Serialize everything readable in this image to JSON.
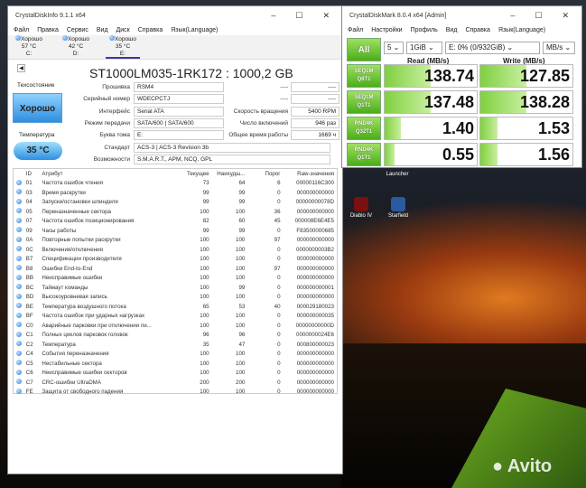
{
  "desktop": {
    "icons": [
      {
        "label": "Launcher"
      },
      {
        "label": "Diablo IV"
      },
      {
        "label": "Starfield"
      }
    ],
    "watermark": "Avito"
  },
  "cdi": {
    "title": "CrystalDiskInfo 9.1.1 x64",
    "menu": [
      "Файл",
      "Правка",
      "Сервис",
      "Вид",
      "Диск",
      "Справка",
      "Язык(Language)"
    ],
    "drives": [
      {
        "status": "Хорошо",
        "temp": "57 °C",
        "letter": "C:"
      },
      {
        "status": "Хорошо",
        "temp": "42 °C",
        "letter": "D:"
      },
      {
        "status": "Хорошо",
        "temp": "35 °C",
        "letter": "E:"
      }
    ],
    "model": "ST1000LM035-1RK172 : 1000,2 GB",
    "health_label": "Техсостояние",
    "health": "Хорошо",
    "temp_label": "Температура",
    "temp": "35 °C",
    "fields": [
      {
        "label": "Прошивка",
        "value": "RSM4"
      },
      {
        "label": "Серийный номер",
        "value": "WDECPCTJ"
      },
      {
        "label": "Интерфейс",
        "value": "Serial ATA"
      },
      {
        "label": "Режим передачи",
        "value": "SATA/600 | SATA/600"
      },
      {
        "label": "Буква тома",
        "value": "E:"
      },
      {
        "label": "Стандарт",
        "value": "ACS-3 | ACS-3 Revision 3b"
      },
      {
        "label": "Возможности",
        "value": "S.M.A.R.T., APM, NCQ, GPL"
      }
    ],
    "right_fields": [
      {
        "label": "----",
        "value": "----"
      },
      {
        "label": "----",
        "value": "----"
      },
      {
        "label": "Скорость вращения",
        "value": "5400 RPM"
      },
      {
        "label": "Число включений",
        "value": "946 раз"
      },
      {
        "label": "Общее время работы",
        "value": "1669 ч"
      }
    ],
    "columns": [
      "ID",
      "Атрибут",
      "Текущее",
      "Наихудш...",
      "Порог",
      "Raw-значения"
    ],
    "rows": [
      [
        "01",
        "Частота ошибок чтения",
        "73",
        "64",
        "6",
        "00000116C300"
      ],
      [
        "03",
        "Время раскрутки",
        "99",
        "99",
        "0",
        "000000000000"
      ],
      [
        "04",
        "Запуски/остановки шпинделя",
        "99",
        "99",
        "0",
        "00000000078D"
      ],
      [
        "05",
        "Переназначенные сектора",
        "100",
        "100",
        "36",
        "000000000000"
      ],
      [
        "07",
        "Частота ошибок позиционирования",
        "82",
        "60",
        "45",
        "000008E6E4E5"
      ],
      [
        "09",
        "Часы работы",
        "99",
        "99",
        "0",
        "F83500000685"
      ],
      [
        "0A",
        "Повторные попытки раскрутки",
        "100",
        "100",
        "97",
        "000000000000"
      ],
      [
        "0C",
        "Включения/отключения",
        "100",
        "100",
        "0",
        "0000000003B2"
      ],
      [
        "B7",
        "Спецификации производителя",
        "100",
        "100",
        "0",
        "000000000000"
      ],
      [
        "B8",
        "Ошибки End-to-End",
        "100",
        "100",
        "97",
        "000000000000"
      ],
      [
        "BB",
        "Неисправимые ошибки",
        "100",
        "100",
        "0",
        "000000000000"
      ],
      [
        "BC",
        "Таймаут команды",
        "100",
        "99",
        "0",
        "000000000001"
      ],
      [
        "BD",
        "Высокоуровневая запись",
        "100",
        "100",
        "0",
        "000000000000"
      ],
      [
        "BE",
        "Температура воздушного потока",
        "65",
        "53",
        "40",
        "000029180023"
      ],
      [
        "BF",
        "Частота ошибок при ударных нагрузках",
        "100",
        "100",
        "0",
        "000000000035"
      ],
      [
        "C0",
        "Аварийные парковки при отключении пи...",
        "100",
        "100",
        "0",
        "00000000000D"
      ],
      [
        "C1",
        "Полных циклов парковок головок",
        "96",
        "96",
        "0",
        "0000000024E6"
      ],
      [
        "C2",
        "Температура",
        "35",
        "47",
        "0",
        "000800000023"
      ],
      [
        "C4",
        "События переназначения",
        "100",
        "100",
        "0",
        "000000000000"
      ],
      [
        "C5",
        "Нестабильные сектора",
        "100",
        "100",
        "0",
        "000000000000"
      ],
      [
        "C6",
        "Неисправимые ошибки секторов",
        "100",
        "100",
        "0",
        "000000000000"
      ],
      [
        "C7",
        "CRC-ошибки UltraDMA",
        "200",
        "200",
        "0",
        "000000000000"
      ],
      [
        "FE",
        "Защита от свободного падения",
        "100",
        "100",
        "0",
        "000000000000"
      ]
    ]
  },
  "cdm": {
    "title": "CrystalDiskMark 8.0.4 x64 [Admin]",
    "menu": [
      "Файл",
      "Настройки",
      "Профиль",
      "Вид",
      "Справка",
      "Язык(Language)"
    ],
    "all": "All",
    "count": "5",
    "size": "1GiB",
    "drive": "E: 0% (0/932GiB)",
    "unit": "MB/s",
    "read_header": "Read (MB/s)",
    "write_header": "Write (MB/s)",
    "tests": [
      {
        "l1": "SEQ1M",
        "l2": "Q8T1",
        "read": "138.74",
        "write": "127.85",
        "read_fill": 0.5,
        "write_fill": 0.5
      },
      {
        "l1": "SEQ1M",
        "l2": "Q1T1",
        "read": "137.48",
        "write": "138.28",
        "read_fill": 0.5,
        "write_fill": 0.5
      },
      {
        "l1": "RND4K",
        "l2": "Q32T1",
        "read": "1.40",
        "write": "1.53",
        "read_fill": 0.18,
        "write_fill": 0.19
      },
      {
        "l1": "RND4K",
        "l2": "Q1T1",
        "read": "0.55",
        "write": "1.56",
        "read_fill": 0.11,
        "write_fill": 0.19
      }
    ]
  }
}
